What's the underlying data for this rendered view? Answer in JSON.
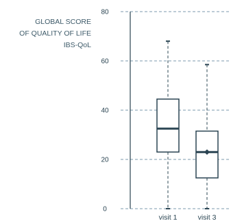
{
  "chart_data": {
    "type": "boxplot",
    "title": "",
    "ylabel_lines": [
      "GLOBAL SCORE",
      "OF QUALITY OF LIFE",
      "IBS-QoL"
    ],
    "xlabel": "",
    "categories": [
      "visit 1",
      "visit 3"
    ],
    "ylim": [
      0,
      80
    ],
    "yticks": [
      0,
      20,
      40,
      60,
      80
    ],
    "grid": true,
    "boxes": [
      {
        "category": "visit 1",
        "min": 0,
        "q1": 23,
        "median": 32.5,
        "q3": 44.5,
        "max": 68
      },
      {
        "category": "visit 3",
        "min": 0,
        "q1": 12.5,
        "median": 23,
        "q3": 31.5,
        "max": 58.5,
        "mean": 23
      }
    ]
  },
  "colors": {
    "stroke": "#2a4452",
    "grid": "#7b98ad",
    "label": "#3d5a69"
  }
}
